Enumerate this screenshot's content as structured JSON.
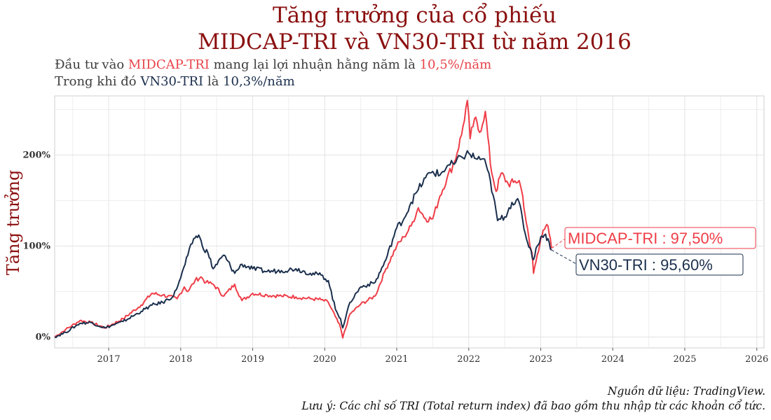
{
  "title": {
    "line1": "Tăng trưởng của cổ phiếu",
    "line2": "MIDCAP-TRI và VN30-TRI từ năm 2016"
  },
  "subtitle": {
    "line1_prefix": "Đầu tư vào ",
    "line1_highlight": "MIDCAP-TRI",
    "line1_middle": " mang lại lợi nhuận hằng năm là ",
    "line1_value": "10,5%/năm",
    "line2_prefix": "Trong khi đó ",
    "line2_highlight": "VN30-TRI",
    "line2_middle": " là ",
    "line2_value": "10,3%/năm"
  },
  "caption": {
    "source": "Nguồn dữ liệu: TradingView.",
    "note": "Lưu ý: Các chỉ số TRI (Total return index) đã bao gồm thu nhập từ các khoản cổ tức."
  },
  "colors": {
    "midcap": "#ef3d47",
    "vn30": "#1b2f4d",
    "title": "#8b0f0f",
    "grid": "#e3e3e3"
  },
  "chart_data": {
    "type": "line",
    "ylabel": "Tăng trưởng",
    "xlabel": "",
    "xlim": [
      2016.25,
      2026.1
    ],
    "ylim": [
      -12,
      265
    ],
    "xticks": [
      2017,
      2018,
      2019,
      2020,
      2021,
      2022,
      2023,
      2024,
      2025,
      2026
    ],
    "xtick_labels": [
      "2017",
      "2018",
      "2019",
      "2020",
      "2021",
      "2022",
      "2023",
      "2024",
      "2025",
      "2026"
    ],
    "yticks": [
      0,
      100,
      200
    ],
    "ytick_labels": [
      "0%",
      "100%",
      "200%"
    ],
    "grid": true,
    "legend": "none",
    "series": [
      {
        "name": "MIDCAP-TRI",
        "end_label": "MIDCAP-TRI : 97,50%",
        "x": [
          2016.25,
          2016.4,
          2016.6,
          2016.75,
          2016.95,
          2017.2,
          2017.45,
          2017.6,
          2017.75,
          2017.95,
          2018.05,
          2018.1,
          2018.2,
          2018.28,
          2018.35,
          2018.45,
          2018.6,
          2018.75,
          2018.85,
          2019.0,
          2019.2,
          2019.4,
          2019.6,
          2019.8,
          2019.95,
          2020.05,
          2020.15,
          2020.22,
          2020.25,
          2020.35,
          2020.5,
          2020.7,
          2020.85,
          2021.0,
          2021.1,
          2021.2,
          2021.3,
          2021.4,
          2021.5,
          2021.6,
          2021.7,
          2021.8,
          2021.9,
          2021.98,
          2022.02,
          2022.08,
          2022.15,
          2022.23,
          2022.3,
          2022.38,
          2022.45,
          2022.55,
          2022.62,
          2022.7,
          2022.75,
          2022.8,
          2022.85,
          2022.88,
          2022.9,
          2022.95,
          2023.0,
          2023.05,
          2023.1,
          2023.15
        ],
        "values": [
          0,
          8,
          18,
          16,
          10,
          20,
          35,
          48,
          46,
          42,
          55,
          50,
          62,
          66,
          60,
          58,
          45,
          58,
          40,
          48,
          46,
          45,
          44,
          42,
          41,
          38,
          22,
          10,
          -1,
          25,
          36,
          45,
          75,
          100,
          110,
          122,
          142,
          130,
          130,
          155,
          175,
          192,
          222,
          260,
          218,
          240,
          225,
          248,
          190,
          160,
          180,
          168,
          170,
          172,
          155,
          125,
          100,
          92,
          70,
          90,
          108,
          118,
          122,
          97.5
        ]
      },
      {
        "name": "VN30-TRI",
        "end_label": "VN30-TRI : 95,60%",
        "x": [
          2016.25,
          2016.4,
          2016.6,
          2016.75,
          2016.95,
          2017.2,
          2017.45,
          2017.6,
          2017.75,
          2017.9,
          2018.0,
          2018.1,
          2018.18,
          2018.25,
          2018.3,
          2018.38,
          2018.45,
          2018.6,
          2018.75,
          2018.85,
          2019.0,
          2019.2,
          2019.4,
          2019.6,
          2019.8,
          2019.95,
          2020.05,
          2020.15,
          2020.22,
          2020.25,
          2020.35,
          2020.5,
          2020.7,
          2020.85,
          2021.0,
          2021.1,
          2021.2,
          2021.3,
          2021.4,
          2021.5,
          2021.6,
          2021.7,
          2021.8,
          2021.9,
          2022.0,
          2022.1,
          2022.2,
          2022.3,
          2022.4,
          2022.5,
          2022.6,
          2022.7,
          2022.75,
          2022.8,
          2022.85,
          2022.9,
          2022.95,
          2023.0,
          2023.05,
          2023.1,
          2023.15
        ],
        "values": [
          0,
          5,
          15,
          16,
          10,
          17,
          28,
          35,
          38,
          45,
          65,
          90,
          108,
          112,
          100,
          92,
          75,
          90,
          70,
          80,
          75,
          72,
          73,
          75,
          70,
          68,
          62,
          30,
          20,
          10,
          38,
          55,
          60,
          85,
          120,
          130,
          148,
          162,
          175,
          182,
          178,
          188,
          190,
          198,
          202,
          196,
          196,
          172,
          128,
          132,
          148,
          148,
          128,
          108,
          98,
          85,
          100,
          110,
          112,
          108,
          95.6
        ]
      }
    ]
  }
}
